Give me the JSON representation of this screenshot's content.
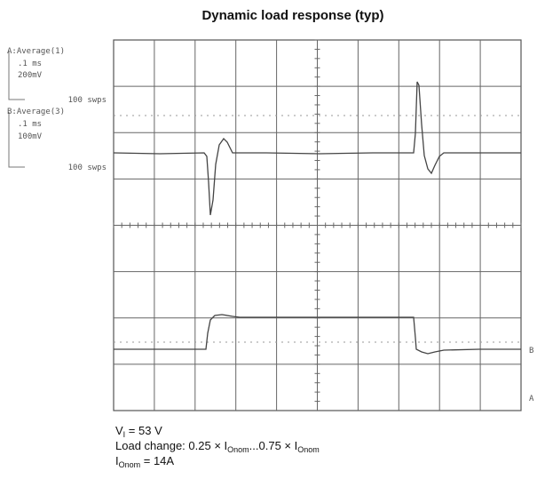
{
  "title": "Dynamic load response (typ)",
  "channels": [
    {
      "label": "A:Average(1)",
      "time": ".1 ms",
      "volts": "200mV",
      "sweeps": "100 swps"
    },
    {
      "label": "B:Average(3)",
      "time": ".1 ms",
      "volts": "100mV",
      "sweeps": "100 swps"
    }
  ],
  "markers": [
    "B",
    "A"
  ],
  "notes": [
    [
      "V",
      "I",
      " = 53 V"
    ],
    [
      "Load change: 0.25 × I",
      "Onom",
      "...0.75 × I",
      "Onom"
    ],
    [
      "I",
      "Onom",
      " = 14A"
    ]
  ]
}
